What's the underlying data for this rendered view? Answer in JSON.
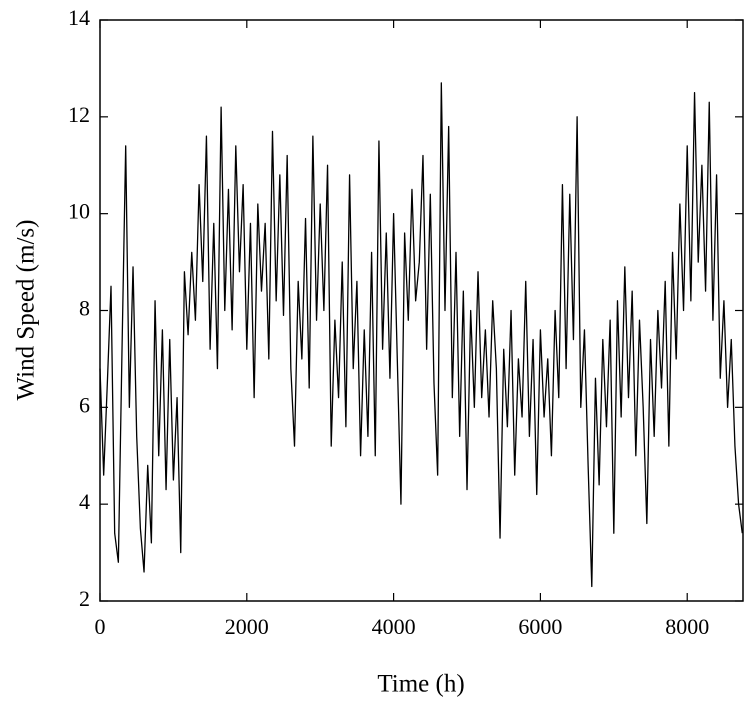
{
  "chart_data": {
    "type": "line",
    "xlabel": "Time (h)",
    "ylabel": "Wind Speed (m/s)",
    "xlim": [
      0,
      8760
    ],
    "ylim": [
      2,
      14
    ],
    "xticks": [
      0,
      2000,
      4000,
      6000,
      8000
    ],
    "yticks": [
      2,
      4,
      6,
      8,
      10,
      12,
      14
    ],
    "color": "#000000",
    "x": [
      0,
      50,
      100,
      150,
      200,
      250,
      300,
      350,
      400,
      450,
      500,
      550,
      600,
      650,
      700,
      750,
      800,
      850,
      900,
      950,
      1000,
      1050,
      1100,
      1150,
      1200,
      1250,
      1300,
      1350,
      1400,
      1450,
      1500,
      1550,
      1600,
      1650,
      1700,
      1750,
      1800,
      1850,
      1900,
      1950,
      2000,
      2050,
      2100,
      2150,
      2200,
      2250,
      2300,
      2350,
      2400,
      2450,
      2500,
      2550,
      2600,
      2650,
      2700,
      2750,
      2800,
      2850,
      2900,
      2950,
      3000,
      3050,
      3100,
      3150,
      3200,
      3250,
      3300,
      3350,
      3400,
      3450,
      3500,
      3550,
      3600,
      3650,
      3700,
      3750,
      3800,
      3850,
      3900,
      3950,
      4000,
      4050,
      4100,
      4150,
      4200,
      4250,
      4300,
      4350,
      4400,
      4450,
      4500,
      4550,
      4600,
      4650,
      4700,
      4750,
      4800,
      4850,
      4900,
      4950,
      5000,
      5050,
      5100,
      5150,
      5200,
      5250,
      5300,
      5350,
      5400,
      5450,
      5500,
      5550,
      5600,
      5650,
      5700,
      5750,
      5800,
      5850,
      5900,
      5950,
      6000,
      6050,
      6100,
      6150,
      6200,
      6250,
      6300,
      6350,
      6400,
      6450,
      6500,
      6550,
      6600,
      6650,
      6700,
      6750,
      6800,
      6850,
      6900,
      6950,
      7000,
      7050,
      7100,
      7150,
      7200,
      7250,
      7300,
      7350,
      7400,
      7450,
      7500,
      7550,
      7600,
      7650,
      7700,
      7750,
      7800,
      7850,
      7900,
      7950,
      8000,
      8050,
      8100,
      8150,
      8200,
      8250,
      8300,
      8350,
      8400,
      8450,
      8500,
      8550,
      8600,
      8650,
      8700,
      8750
    ],
    "values": [
      6.8,
      4.6,
      6.5,
      8.5,
      3.4,
      2.8,
      7.2,
      11.4,
      6.0,
      8.9,
      5.4,
      3.5,
      2.6,
      4.8,
      3.2,
      8.2,
      5.0,
      7.6,
      4.3,
      7.4,
      4.5,
      6.2,
      3.0,
      8.8,
      7.5,
      9.2,
      7.8,
      10.6,
      8.6,
      11.6,
      7.2,
      9.8,
      6.8,
      12.2,
      8.0,
      10.5,
      7.6,
      11.4,
      8.8,
      10.6,
      7.2,
      9.8,
      6.2,
      10.2,
      8.4,
      9.8,
      7.0,
      11.7,
      8.2,
      10.8,
      7.9,
      11.2,
      6.8,
      5.2,
      8.6,
      7.0,
      9.9,
      6.4,
      11.6,
      7.8,
      10.2,
      8.0,
      11.0,
      5.2,
      7.8,
      6.2,
      9.0,
      5.6,
      10.8,
      6.8,
      8.6,
      5.0,
      7.6,
      5.4,
      9.2,
      5.0,
      11.5,
      7.2,
      9.6,
      6.6,
      10.0,
      7.0,
      4.0,
      9.6,
      7.8,
      10.5,
      8.2,
      9.0,
      11.2,
      7.2,
      10.4,
      6.5,
      4.6,
      12.7,
      8.0,
      11.8,
      6.2,
      9.2,
      5.4,
      8.4,
      4.3,
      8.0,
      6.0,
      8.8,
      6.2,
      7.6,
      5.8,
      8.2,
      6.8,
      3.3,
      7.2,
      5.6,
      8.0,
      4.6,
      7.0,
      5.8,
      8.6,
      5.4,
      7.4,
      4.2,
      7.6,
      5.8,
      7.0,
      5.0,
      8.0,
      6.2,
      10.6,
      6.8,
      10.4,
      7.4,
      12.0,
      6.0,
      7.6,
      4.8,
      2.3,
      6.6,
      4.4,
      7.4,
      5.6,
      7.8,
      3.4,
      8.2,
      5.8,
      8.9,
      6.2,
      8.4,
      5.0,
      7.8,
      6.0,
      3.6,
      7.4,
      5.4,
      8.0,
      6.4,
      8.6,
      5.2,
      9.2,
      7.0,
      10.2,
      8.0,
      11.4,
      8.2,
      12.5,
      9.0,
      11.0,
      8.4,
      12.3,
      7.8,
      10.8,
      6.6,
      8.2,
      6.0,
      7.4,
      5.2,
      4.0,
      3.4
    ]
  }
}
